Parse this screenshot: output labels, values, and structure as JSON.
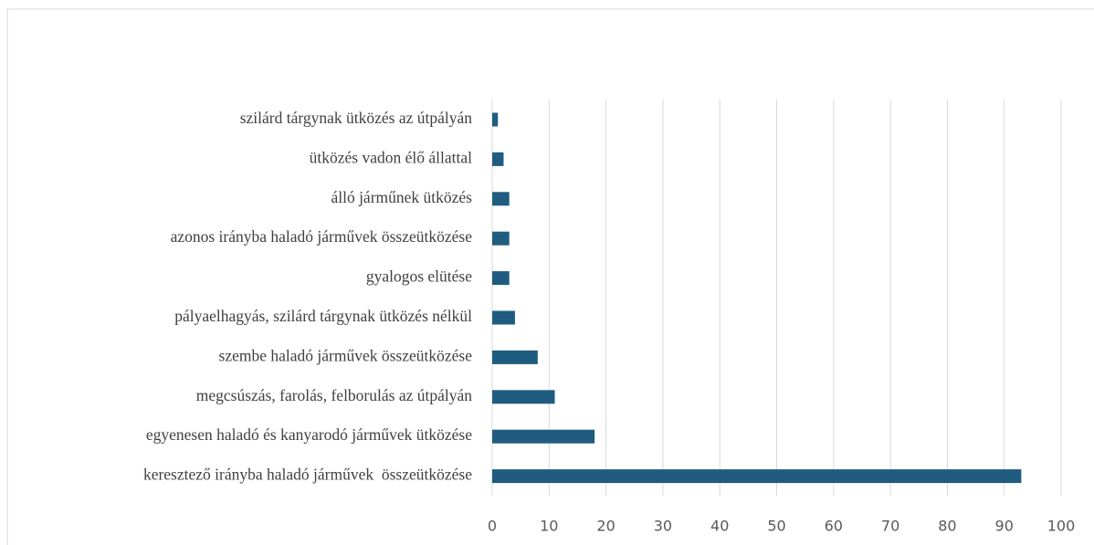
{
  "chart_data": {
    "type": "barh",
    "categories": [
      "szilárd tárgynak ütközés az útpályán",
      "ütközés vadon élő állattal",
      "álló járműnek ütközés",
      "azonos irányba haladó járművek összeütközése",
      "gyalogos elütése",
      "pályaelhagyás, szilárd tárgynak ütközés nélkül",
      "szembe haladó járművek összeütközése",
      "megcsúszás, farolás, felborulás az útpályán",
      "egyenesen haladó és kanyarodó járművek ütközése",
      "keresztező irányba haladó járművek  összeütközése"
    ],
    "values": [
      1,
      2,
      3,
      3,
      3,
      4,
      8,
      11,
      18,
      93
    ],
    "color": "#1f5c80",
    "xlim": [
      0,
      100
    ],
    "xticks": [
      0,
      10,
      20,
      30,
      40,
      50,
      60,
      70,
      80,
      90,
      100
    ],
    "grid": true
  }
}
